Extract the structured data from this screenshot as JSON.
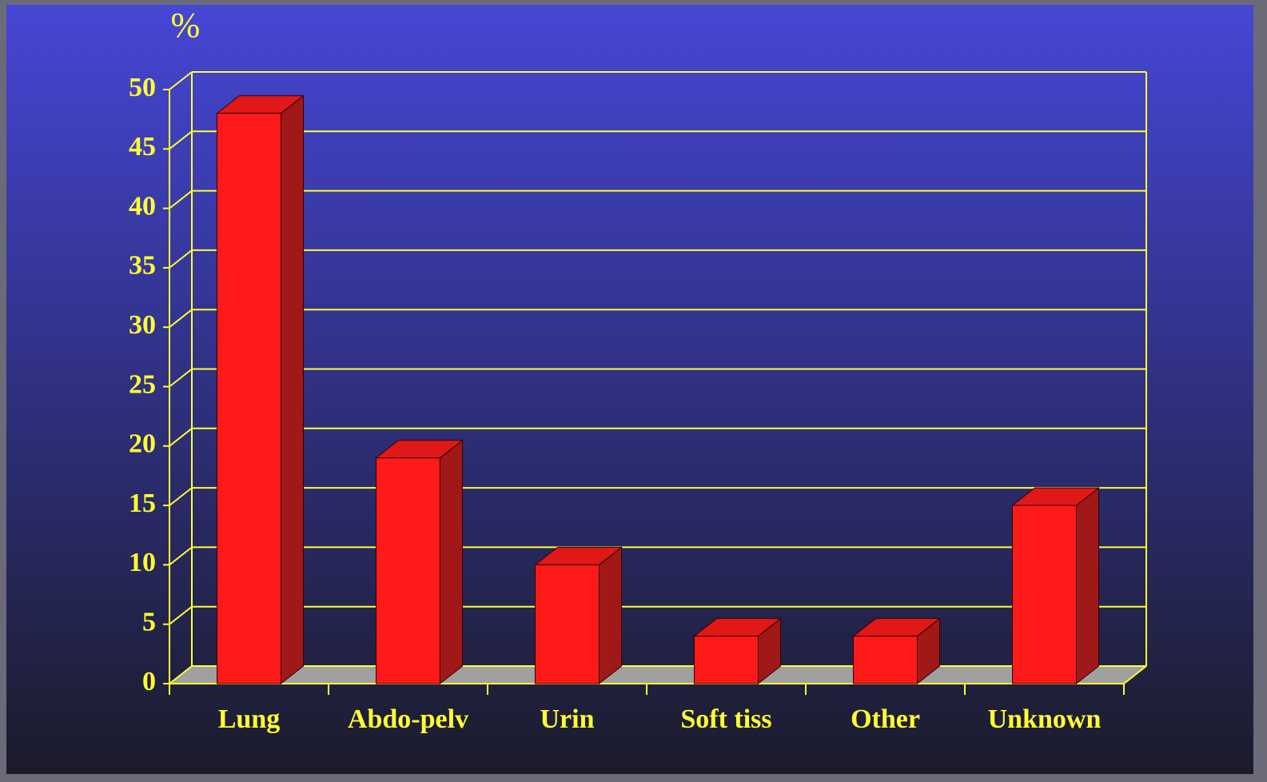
{
  "chart_data": {
    "type": "bar",
    "y_label": "%",
    "categories": [
      "Lung",
      "Abdo-pelv",
      "Urin",
      "Soft tiss",
      "Other",
      "Unknown"
    ],
    "values": [
      48,
      19,
      10,
      4,
      4,
      15
    ],
    "color": "#ff1a1a",
    "ylim": [
      0,
      50
    ],
    "yticks": [
      0,
      5,
      10,
      15,
      20,
      25,
      30,
      35,
      40,
      45,
      50
    ],
    "grid": true
  }
}
